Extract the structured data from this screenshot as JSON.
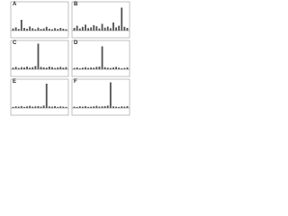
{
  "chart_data": [
    {
      "type": "bar",
      "title": "A",
      "color": "#555555",
      "ylim": [
        0,
        100
      ],
      "values": [
        8,
        12,
        6,
        40,
        10,
        7,
        15,
        9,
        5,
        11,
        6,
        8,
        14,
        7,
        5,
        9,
        6,
        10,
        7,
        5
      ]
    },
    {
      "type": "bar",
      "title": "B",
      "color": "#555555",
      "ylim": [
        0,
        100
      ],
      "values": [
        10,
        18,
        8,
        14,
        22,
        9,
        12,
        20,
        16,
        8,
        25,
        11,
        15,
        9,
        30,
        12,
        18,
        85,
        14,
        10
      ]
    },
    {
      "type": "bar",
      "title": "C",
      "color": "#555555",
      "ylim": [
        0,
        100
      ],
      "values": [
        6,
        9,
        5,
        8,
        7,
        10,
        6,
        8,
        12,
        95,
        9,
        7,
        6,
        10,
        8,
        5,
        7,
        9,
        6,
        8
      ]
    },
    {
      "type": "bar",
      "title": "D",
      "color": "#555555",
      "ylim": [
        0,
        100
      ],
      "values": [
        5,
        7,
        4,
        6,
        8,
        5,
        7,
        6,
        9,
        10,
        85,
        8,
        6,
        5,
        7,
        9,
        6,
        4,
        5,
        7
      ]
    },
    {
      "type": "bar",
      "title": "E",
      "color": "#555555",
      "ylim": [
        0,
        100
      ],
      "values": [
        4,
        6,
        5,
        7,
        4,
        6,
        8,
        5,
        6,
        7,
        5,
        9,
        90,
        6,
        5,
        7,
        4,
        6,
        5,
        4
      ]
    },
    {
      "type": "bar",
      "title": "F",
      "color": "#555555",
      "ylim": [
        0,
        100
      ],
      "values": [
        5,
        4,
        6,
        5,
        7,
        4,
        5,
        6,
        8,
        5,
        6,
        7,
        9,
        95,
        6,
        5,
        4,
        6,
        5,
        7
      ]
    }
  ]
}
